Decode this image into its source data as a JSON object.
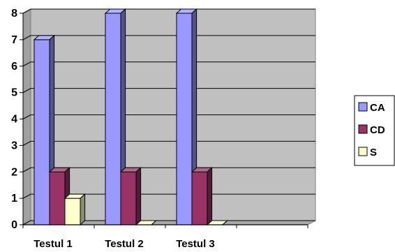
{
  "chart_data": {
    "type": "bar",
    "categories": [
      "Testul 1",
      "Testul 2",
      "Testul 3",
      ""
    ],
    "series": [
      {
        "name": "CA",
        "values": [
          7,
          8,
          8,
          null
        ],
        "color": "#9999FF"
      },
      {
        "name": "CD",
        "values": [
          2,
          2,
          2,
          null
        ],
        "color": "#993366"
      },
      {
        "name": "S",
        "values": [
          1,
          0,
          0,
          null
        ],
        "color": "#FFFFCC"
      }
    ],
    "y_ticks": [
      "0",
      "1",
      "2",
      "3",
      "4",
      "5",
      "6",
      "7",
      "8"
    ],
    "ylim": [
      0,
      8
    ],
    "grid": true,
    "legend_position": "right",
    "title": "",
    "xlabel": "",
    "ylabel": "",
    "colors": {
      "plot_background": "#C0C0C0",
      "gridline": "#000000",
      "side_wall": "#A0A0A0"
    }
  }
}
